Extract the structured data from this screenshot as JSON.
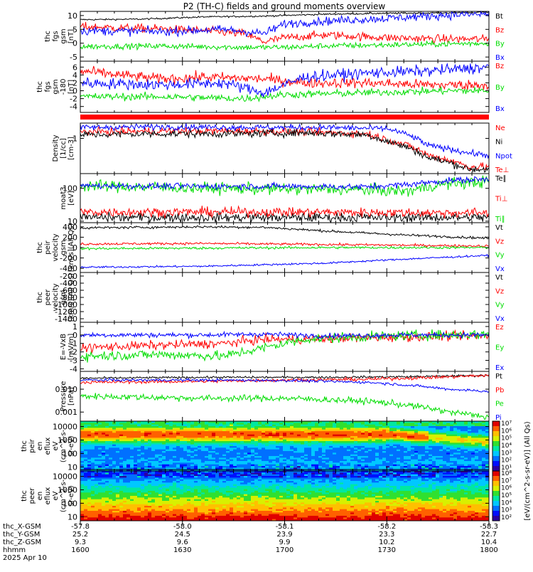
{
  "page_title": "P2 (TH-C) fields and ground moments overview",
  "x_axis": {
    "ticks": [
      {
        "hhmm": "1600",
        "X": "-57.8",
        "Y": "25.2",
        "Z": "9.3"
      },
      {
        "hhmm": "1630",
        "X": "-58.0",
        "Y": "24.5",
        "Z": "9.6"
      },
      {
        "hhmm": "1700",
        "X": "-58.1",
        "Y": "23.9",
        "Z": "9.9"
      },
      {
        "hhmm": "1730",
        "X": "-58.2",
        "Y": "23.3",
        "Z": "10.2"
      },
      {
        "hhmm": "1800",
        "X": "-58.3",
        "Y": "22.7",
        "Z": "10.4"
      }
    ],
    "row_labels": [
      "thc_X-GSM",
      "thc_Y-GSM",
      "thc_Z-GSM",
      "hhmm"
    ],
    "date": "2025 Apr 10"
  },
  "colors": {
    "black": "#000000",
    "red": "#ff0000",
    "green": "#00dd00",
    "blue": "#0000ff"
  },
  "colorbar": {
    "label": "[eV/(cm^2-s-sr-eV)] (All Qs)",
    "labels_top": [
      "10⁷",
      "10⁶",
      "10⁵",
      "10⁴",
      "10³",
      "10²",
      "10¹"
    ],
    "labels_bot": [
      "10⁸",
      "10⁷",
      "10⁶",
      "10⁵",
      "10⁴",
      "10³",
      "10²"
    ]
  },
  "chart_data": [
    {
      "id": "fgs",
      "type": "line",
      "ylabel": [
        "thc",
        "fgs",
        "gsm",
        "[nT]"
      ],
      "ylim": [
        -6.5,
        11.5
      ],
      "yticks": [
        10,
        5,
        0,
        -5
      ],
      "series": [
        {
          "name": "Bt",
          "color": "black",
          "points": [
            [
              0,
              8.5
            ],
            [
              0.15,
              8.7
            ],
            [
              0.3,
              9.5
            ],
            [
              0.45,
              9.8
            ],
            [
              0.6,
              10.5
            ],
            [
              0.75,
              10.8
            ],
            [
              0.9,
              11
            ],
            [
              1,
              11.2
            ]
          ],
          "noise": 0.25
        },
        {
          "name": "Bz",
          "color": "red",
          "points": [
            [
              0,
              6
            ],
            [
              0.1,
              5.5
            ],
            [
              0.2,
              5.2
            ],
            [
              0.3,
              4.5
            ],
            [
              0.4,
              3.5
            ],
            [
              0.45,
              0.5
            ],
            [
              0.5,
              2
            ],
            [
              0.6,
              3
            ],
            [
              0.75,
              2
            ],
            [
              0.9,
              1.5
            ],
            [
              1,
              1.5
            ]
          ],
          "noise": 1.3
        },
        {
          "name": "By",
          "color": "green",
          "points": [
            [
              0,
              -1.2
            ],
            [
              0.2,
              -1
            ],
            [
              0.4,
              -1.5
            ],
            [
              0.5,
              -1.5
            ],
            [
              0.6,
              -1
            ],
            [
              0.8,
              -0.5
            ],
            [
              1,
              0
            ]
          ],
          "noise": 0.9
        },
        {
          "name": "Bx",
          "color": "blue",
          "points": [
            [
              0,
              4.5
            ],
            [
              0.2,
              4.2
            ],
            [
              0.35,
              5
            ],
            [
              0.45,
              3.5
            ],
            [
              0.5,
              7
            ],
            [
              0.6,
              8
            ],
            [
              0.75,
              9
            ],
            [
              0.9,
              10.2
            ],
            [
              1,
              10.5
            ]
          ],
          "noise": 1.3
        }
      ]
    },
    {
      "id": "fgs2",
      "type": "line",
      "ylabel": [
        "thc",
        "fgs",
        "gsm",
        "-180",
        "[nT]"
      ],
      "ylim": [
        -5.5,
        7.5
      ],
      "yticks": [
        6,
        4,
        2,
        0,
        -2,
        -4
      ],
      "series": [
        {
          "name": "Bz",
          "color": "red",
          "points": [
            [
              0,
              5
            ],
            [
              0.1,
              4
            ],
            [
              0.2,
              3
            ],
            [
              0.3,
              3.5
            ],
            [
              0.45,
              3
            ],
            [
              0.55,
              2
            ],
            [
              0.7,
              2
            ],
            [
              0.85,
              1.5
            ],
            [
              1,
              1.5
            ]
          ],
          "noise": 1.1
        },
        {
          "name": "By",
          "color": "green",
          "points": [
            [
              0,
              -1.5
            ],
            [
              0.2,
              -1.5
            ],
            [
              0.4,
              -2
            ],
            [
              0.5,
              -1
            ],
            [
              0.7,
              -0.5
            ],
            [
              0.9,
              0
            ],
            [
              1,
              0
            ]
          ],
          "noise": 0.8
        },
        {
          "name": "Bx",
          "color": "blue",
          "points": [
            [
              0,
              2
            ],
            [
              0.2,
              1.5
            ],
            [
              0.35,
              2
            ],
            [
              0.45,
              -0.5
            ],
            [
              0.55,
              3.5
            ],
            [
              0.7,
              4.5
            ],
            [
              0.85,
              5
            ],
            [
              1,
              6
            ]
          ],
          "noise": 1.2
        }
      ]
    },
    {
      "id": "density",
      "type": "line",
      "yscale": "log",
      "ylabel": [
        "Density",
        "[1/cc]",
        "[cm-3]"
      ],
      "ylim": [
        0.08,
        3
      ],
      "yticks": [
        1
      ],
      "ytick_labels": [
        "1"
      ],
      "series": [
        {
          "name": "Ne",
          "color": "red",
          "points": [
            [
              0,
              1.6
            ],
            [
              0.2,
              1.7
            ],
            [
              0.4,
              1.7
            ],
            [
              0.55,
              1.6
            ],
            [
              0.7,
              1.4
            ],
            [
              0.75,
              0.9
            ],
            [
              0.85,
              0.3
            ],
            [
              0.95,
              0.13
            ],
            [
              1,
              0.13
            ]
          ],
          "noise": 0.1
        },
        {
          "name": "Ni",
          "color": "black",
          "points": [
            [
              0,
              1.3
            ],
            [
              0.2,
              1.4
            ],
            [
              0.4,
              1.4
            ],
            [
              0.55,
              1.5
            ],
            [
              0.7,
              1.3
            ],
            [
              0.75,
              0.8
            ],
            [
              0.85,
              0.25
            ],
            [
              0.95,
              0.11
            ],
            [
              1,
              0.11
            ]
          ],
          "noise": 0.1
        },
        {
          "name": "Npot",
          "color": "blue",
          "points": [
            [
              0,
              2.2
            ],
            [
              0.2,
              2.3
            ],
            [
              0.4,
              2.2
            ],
            [
              0.6,
              2.2
            ],
            [
              0.75,
              2
            ],
            [
              0.85,
              0.6
            ],
            [
              0.95,
              0.35
            ],
            [
              1,
              0.3
            ]
          ],
          "noise": 0.08
        },
        {
          "name": "Te⊥",
          "color": "red",
          "points": []
        }
      ]
    },
    {
      "id": "temp",
      "type": "line",
      "yscale": "log",
      "ylabel": [
        "moat3",
        "[eV]"
      ],
      "ylim": [
        9,
        280
      ],
      "yticks": [
        100,
        10
      ],
      "ytick_labels": [
        "100",
        "10"
      ],
      "series": [
        {
          "name": "Te∥",
          "color": "black",
          "points": [
            [
              0,
              13
            ],
            [
              0.5,
              13
            ],
            [
              0.9,
              13
            ],
            [
              1,
              13
            ]
          ],
          "noise": 0.12
        },
        {
          "name": "Ti⊥",
          "color": "red",
          "points": [
            [
              0,
              19
            ],
            [
              0.5,
              19
            ],
            [
              0.9,
              18
            ],
            [
              1,
              18
            ]
          ],
          "noise": 0.12
        },
        {
          "name": "Ti∥",
          "color": "green",
          "points": [
            [
              0,
              120
            ],
            [
              0.3,
              100
            ],
            [
              0.5,
              95
            ],
            [
              0.7,
              90
            ],
            [
              0.8,
              80
            ],
            [
              0.9,
              140
            ],
            [
              1,
              160
            ]
          ],
          "noise": 0.15
        },
        {
          "name": "",
          "color": "blue",
          "points": [
            [
              0,
              120
            ],
            [
              0.3,
              115
            ],
            [
              0.5,
              115
            ],
            [
              0.7,
              110
            ],
            [
              0.8,
              130
            ],
            [
              0.9,
              170
            ],
            [
              1,
              190
            ]
          ],
          "noise": 0.08
        }
      ]
    },
    {
      "id": "peir_vel",
      "type": "line",
      "ylabel": [
        "thc",
        "peir",
        "velocity",
        "gsm",
        "[km/s](All Qs)"
      ],
      "ylim": [
        -480,
        480
      ],
      "yticks": [
        400,
        200,
        0,
        -200,
        -400
      ],
      "series": [
        {
          "name": "Vt",
          "color": "black",
          "points": [
            [
              0,
              380
            ],
            [
              0.3,
              400
            ],
            [
              0.45,
              390
            ],
            [
              0.6,
              320
            ],
            [
              0.8,
              240
            ],
            [
              1,
              180
            ]
          ],
          "noise": 20
        },
        {
          "name": "Vz",
          "color": "red",
          "points": [
            [
              0,
              70
            ],
            [
              0.3,
              80
            ],
            [
              0.6,
              60
            ],
            [
              1,
              30
            ]
          ],
          "noise": 20
        },
        {
          "name": "Vy",
          "color": "green",
          "points": [
            [
              0,
              -20
            ],
            [
              0.3,
              -10
            ],
            [
              0.6,
              0
            ],
            [
              1,
              0
            ]
          ],
          "noise": 20
        },
        {
          "name": "Vx",
          "color": "blue",
          "points": [
            [
              0,
              -380
            ],
            [
              0.3,
              -360
            ],
            [
              0.6,
              -300
            ],
            [
              0.8,
              -220
            ],
            [
              1,
              -150
            ]
          ],
          "noise": 15
        }
      ]
    },
    {
      "id": "peer_vel",
      "type": "line",
      "ylabel": [
        "thc",
        "peer",
        "velocity",
        "gsm",
        "[km/s](All Qs)"
      ],
      "ylim": [
        -1500,
        -100
      ],
      "yticks": [
        -200,
        -400,
        -600,
        -800,
        -1000,
        -1200,
        -1400
      ],
      "series": [
        {
          "name": "Vt",
          "color": "black",
          "points": []
        },
        {
          "name": "Vz",
          "color": "red",
          "points": []
        },
        {
          "name": "Vy",
          "color": "green",
          "points": []
        },
        {
          "name": "Vx",
          "color": "blue",
          "points": []
        }
      ]
    },
    {
      "id": "exb",
      "type": "line",
      "ylabel": [
        "E=-VxB",
        "[mV/m]"
      ],
      "ylim": [
        -4.3,
        1.5
      ],
      "yticks": [
        1,
        0,
        -1,
        -2,
        -3,
        -4
      ],
      "series": [
        {
          "name": "Ez",
          "color": "red",
          "points": [
            [
              0,
              -1.5
            ],
            [
              0.2,
              -1.2
            ],
            [
              0.35,
              -1
            ],
            [
              0.45,
              -0.5
            ],
            [
              0.55,
              -0.5
            ],
            [
              0.7,
              -0.3
            ],
            [
              0.85,
              -0.2
            ],
            [
              1,
              -0.1
            ]
          ],
          "noise": 0.45
        },
        {
          "name": "Ey",
          "color": "green",
          "points": [
            [
              0,
              -2.5
            ],
            [
              0.2,
              -2.3
            ],
            [
              0.35,
              -2.5
            ],
            [
              0.45,
              -1.5
            ],
            [
              0.55,
              -0.5
            ],
            [
              0.7,
              -0.2
            ],
            [
              0.85,
              0
            ],
            [
              1,
              0.1
            ]
          ],
          "noise": 0.5
        },
        {
          "name": "Ex",
          "color": "blue",
          "points": [
            [
              0,
              0
            ],
            [
              0.3,
              0
            ],
            [
              0.45,
              0.1
            ],
            [
              0.6,
              -0.1
            ],
            [
              0.8,
              0
            ],
            [
              1,
              0
            ]
          ],
          "noise": 0.25
        }
      ]
    },
    {
      "id": "pressure",
      "type": "line",
      "yscale": "log",
      "ylabel": [
        "Pressure",
        "[nPa]"
      ],
      "ylim": [
        0.0004,
        0.06
      ],
      "yticks": [
        0.01,
        0.001
      ],
      "ytick_labels": [
        "0.010",
        "0.001"
      ],
      "series": [
        {
          "name": "Pt",
          "color": "black",
          "points": [
            [
              0,
              0.03
            ],
            [
              0.3,
              0.033
            ],
            [
              0.6,
              0.033
            ],
            [
              0.8,
              0.035
            ],
            [
              1,
              0.04
            ]
          ],
          "noise": 0.04
        },
        {
          "name": "Pb",
          "color": "red",
          "points": [
            [
              0,
              0.02
            ],
            [
              0.3,
              0.022
            ],
            [
              0.5,
              0.025
            ],
            [
              0.7,
              0.027
            ],
            [
              0.85,
              0.032
            ],
            [
              1,
              0.04
            ]
          ],
          "noise": 0.06
        },
        {
          "name": "Pe",
          "color": "green",
          "points": [
            [
              0,
              0.005
            ],
            [
              0.3,
              0.004
            ],
            [
              0.5,
              0.004
            ],
            [
              0.7,
              0.003
            ],
            [
              0.8,
              0.002
            ],
            [
              0.9,
              0.001
            ],
            [
              1,
              0.0006
            ]
          ],
          "noise": 0.12
        },
        {
          "name": "Pi",
          "color": "blue",
          "points": [
            [
              0,
              0.025
            ],
            [
              0.3,
              0.025
            ],
            [
              0.5,
              0.024
            ],
            [
              0.7,
              0.02
            ],
            [
              0.8,
              0.015
            ],
            [
              0.9,
              0.01
            ],
            [
              1,
              0.008
            ]
          ],
          "noise": 0.05
        }
      ]
    },
    {
      "id": "peir_spec",
      "type": "heatmap",
      "yscale": "log",
      "ylabel": [
        "thc",
        "peir",
        "en",
        "eflux",
        "eV",
        "(cm^2-s-",
        "sr-eV)"
      ],
      "ylim": [
        5,
        25000
      ],
      "yticks": [
        10000,
        1000,
        100,
        10
      ],
      "ytick_labels": [
        "10000",
        "1000",
        "100",
        "10"
      ]
    },
    {
      "id": "peer_spec",
      "type": "heatmap",
      "yscale": "log",
      "ylabel": [
        "thc",
        "peer",
        "en",
        "eflux",
        "eV",
        "(cm^2-s-",
        "sr-eV)"
      ],
      "ylim": [
        5,
        25000
      ],
      "yticks": [
        10000,
        1000,
        100,
        10
      ],
      "ytick_labels": [
        "10000",
        "1000",
        "100",
        "10"
      ]
    }
  ]
}
